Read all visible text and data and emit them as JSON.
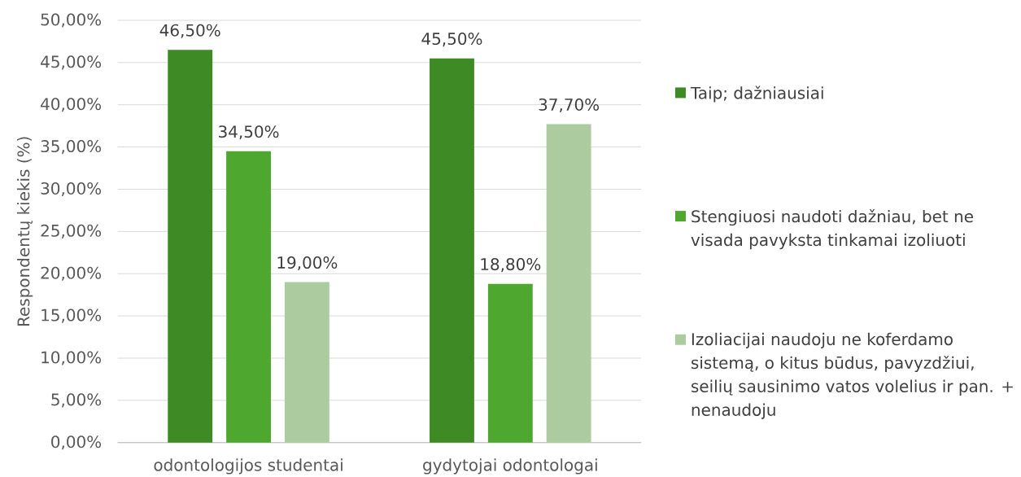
{
  "chart_data": {
    "type": "bar",
    "ylabel": "Respondentų kiekis (%)",
    "categories": [
      "odontologijos studentai",
      "gydytojai odontologai"
    ],
    "series": [
      {
        "name": "Taip; dažniausiai",
        "color": "#3e8a24",
        "values": [
          46.5,
          45.5
        ],
        "value_labels": [
          "46,50%",
          "45,50%"
        ]
      },
      {
        "name": "Stengiuosi naudoti dažniau, bet ne visada pavyksta tinkamai izoliuoti",
        "color": "#4ea72e",
        "values": [
          34.5,
          18.8
        ],
        "value_labels": [
          "34,50%",
          "18,80%"
        ]
      },
      {
        "name": "Izoliacijai naudoju ne koferdamo sistemą, o kitus būdus, pavyzdžiui, seilių sausinimo vatos volelius ir pan. + nenaudoju",
        "color": "#accb9f",
        "values": [
          19.0,
          37.7
        ],
        "value_labels": [
          "19,00%",
          "37,70%"
        ]
      }
    ],
    "ylim": [
      0,
      50
    ],
    "yticks": [
      {
        "value": 0,
        "label": "0,00%"
      },
      {
        "value": 5,
        "label": "5,00%"
      },
      {
        "value": 10,
        "label": "10,00%"
      },
      {
        "value": 15,
        "label": "15,00%"
      },
      {
        "value": 20,
        "label": "20,00%"
      },
      {
        "value": 25,
        "label": "25,00%"
      },
      {
        "value": 30,
        "label": "30,00%"
      },
      {
        "value": 35,
        "label": "35,00%"
      },
      {
        "value": 40,
        "label": "40,00%"
      },
      {
        "value": 45,
        "label": "45,00%"
      },
      {
        "value": 50,
        "label": "50,00%"
      }
    ],
    "grid": "y",
    "legend": "right"
  }
}
